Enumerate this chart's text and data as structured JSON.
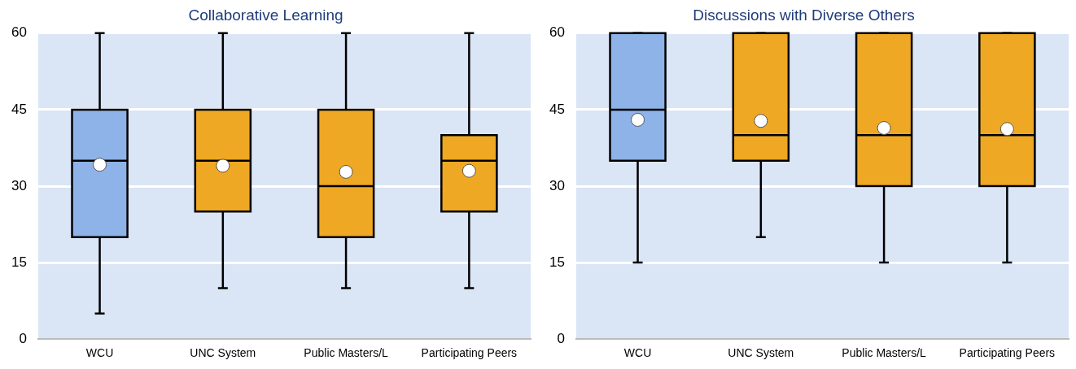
{
  "chart_data": [
    {
      "type": "box",
      "title": "Collaborative Learning",
      "categories": [
        "WCU",
        "UNC System",
        "Public Masters/L",
        "Participating Peers"
      ],
      "colors": [
        "#8db3e8",
        "#efa823",
        "#efa823",
        "#efa823"
      ],
      "ylim": [
        0,
        60
      ],
      "yticks": [
        0,
        15,
        30,
        45,
        60
      ],
      "grid": "y",
      "marker": "circle",
      "boxes": [
        {
          "low": 5,
          "q1": 20,
          "median": 35,
          "q3": 45,
          "high": 60,
          "mean": 34.2
        },
        {
          "low": 10,
          "q1": 25,
          "median": 35,
          "q3": 45,
          "high": 60,
          "mean": 34
        },
        {
          "low": 10,
          "q1": 20,
          "median": 30,
          "q3": 45,
          "high": 60,
          "mean": 32.8
        },
        {
          "low": 10,
          "q1": 25,
          "median": 35,
          "q3": 40,
          "high": 60,
          "mean": 33
        }
      ]
    },
    {
      "type": "box",
      "title": "Discussions with Diverse Others",
      "categories": [
        "WCU",
        "UNC System",
        "Public Masters/L",
        "Participating Peers"
      ],
      "colors": [
        "#8db3e8",
        "#efa823",
        "#efa823",
        "#efa823"
      ],
      "ylim": [
        0,
        60
      ],
      "yticks": [
        0,
        15,
        30,
        45,
        60
      ],
      "grid": "y",
      "marker": "circle",
      "boxes": [
        {
          "low": 15,
          "q1": 35,
          "median": 45,
          "q3": 60,
          "high": 60,
          "mean": 43
        },
        {
          "low": 20,
          "q1": 35,
          "median": 40,
          "q3": 60,
          "high": 60,
          "mean": 42.8
        },
        {
          "low": 15,
          "q1": 30,
          "median": 40,
          "q3": 60,
          "high": 60,
          "mean": 41.4
        },
        {
          "low": 15,
          "q1": 30,
          "median": 40,
          "q3": 60,
          "high": 60,
          "mean": 41.2
        }
      ]
    }
  ]
}
